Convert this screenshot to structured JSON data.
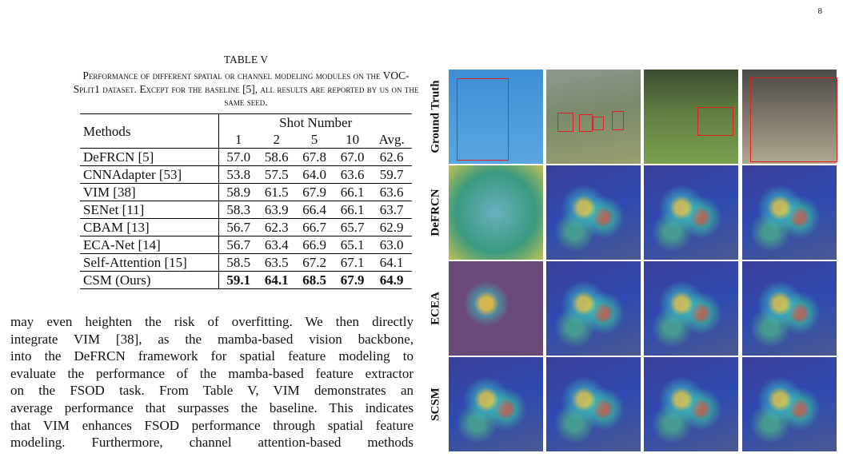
{
  "page_number": "8",
  "table": {
    "label": "TABLE V",
    "caption": "Performance of different spatial or channel modeling modules on the VOC-Split1 dataset. Except for the baseline [5], all results are reported by us on the same seed.",
    "header": [
      "Methods",
      "Shot Number"
    ],
    "columns": [
      "1",
      "2",
      "5",
      "10",
      "Avg."
    ],
    "rows": [
      [
        "DeFRCN [5]",
        "57.0",
        "58.6",
        "67.8",
        "67.0",
        "62.6"
      ],
      [
        "CNNAdapter [53]",
        "53.8",
        "57.5",
        "64.0",
        "63.6",
        "59.7"
      ],
      [
        "VIM [38]",
        "58.9",
        "61.5",
        "67.9",
        "66.1",
        "63.6"
      ],
      [
        "SENet [11]",
        "58.3",
        "63.9",
        "66.4",
        "66.1",
        "63.7"
      ],
      [
        "CBAM [13]",
        "56.7",
        "62.3",
        "66.7",
        "65.7",
        "62.9"
      ],
      [
        "ECA-Net [14]",
        "56.7",
        "63.4",
        "66.9",
        "65.1",
        "63.0"
      ],
      [
        "Self-Attention [15]",
        "58.5",
        "63.5",
        "67.2",
        "67.1",
        "64.1"
      ],
      [
        "CSM (Ours)",
        "59.1",
        "64.1",
        "68.5",
        "67.9",
        "64.9"
      ]
    ]
  },
  "paragraph": [
    "may even heighten the risk of overfitting. We then directly",
    "integrate VIM [38], as the mamba-based vision backbone,",
    "into the DeFRCN framework for spatial feature modeling to",
    "evaluate the performance of the mamba-based feature extractor",
    "on the FSOD task. From Table V, VIM demonstrates an",
    "average performance that surpasses the baseline. This indicates",
    "that VIM enhances FSOD performance through spatial feature",
    "modeling. Furthermore, channel attention-based methods"
  ],
  "figure": {
    "row_labels": [
      "Ground Truth",
      "DeFRCN",
      "ECEA",
      "SCSM"
    ]
  }
}
